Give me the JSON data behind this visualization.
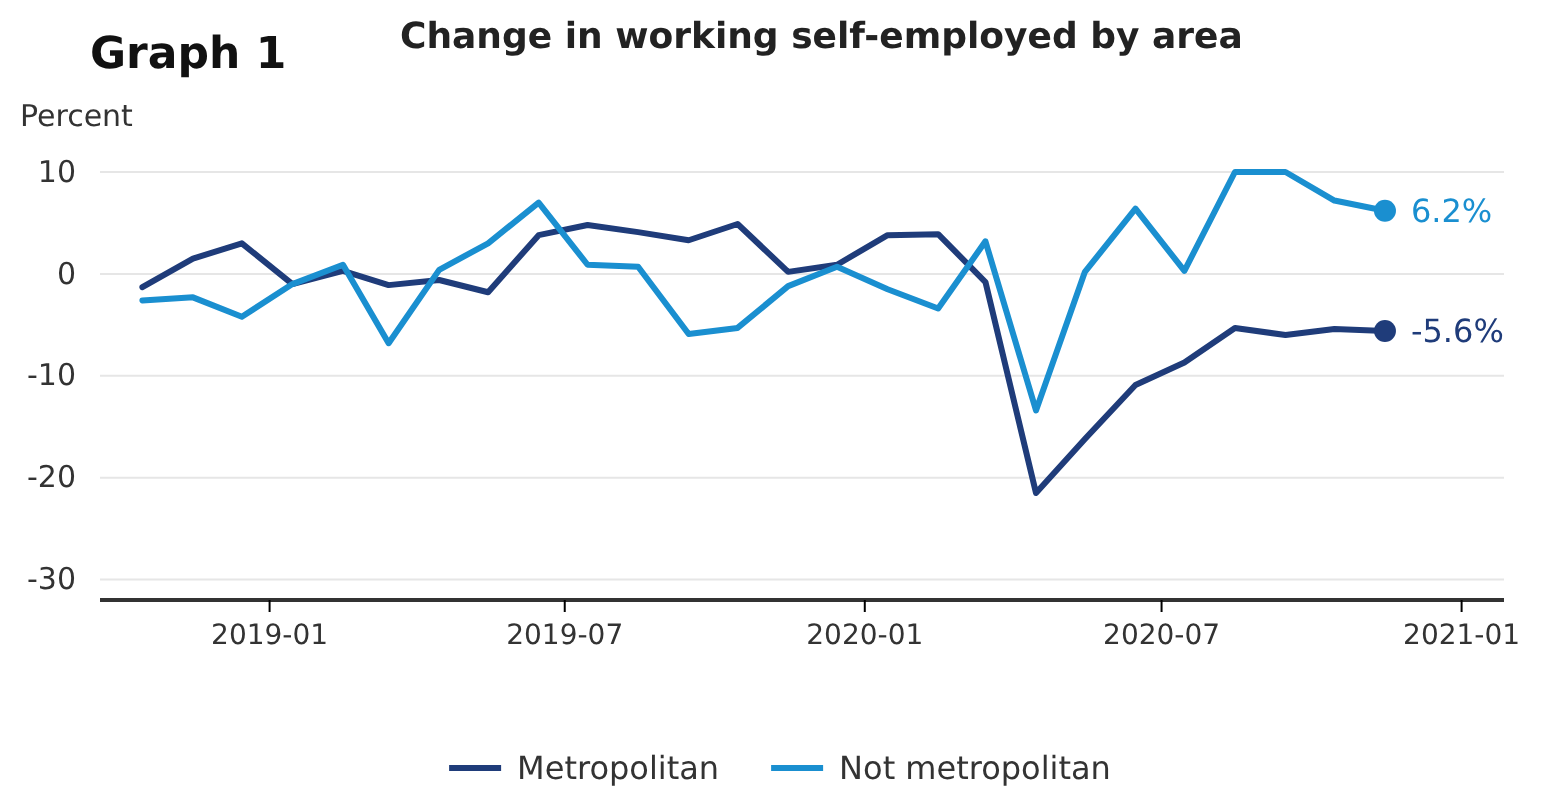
{
  "chart_data": {
    "type": "line",
    "title": "Change in working self-employed by area",
    "ylabel": "Percent",
    "annotations": [
      "Graph 1"
    ],
    "x": [
      "2018-10-15",
      "2018-11-15",
      "2018-12-15",
      "2019-01-15",
      "2019-02-15",
      "2019-03-15",
      "2019-04-15",
      "2019-05-15",
      "2019-06-15",
      "2019-07-15",
      "2019-08-15",
      "2019-09-15",
      "2019-10-15",
      "2019-11-15",
      "2019-12-15",
      "2020-01-15",
      "2020-02-15",
      "2020-03-15",
      "2020-04-15",
      "2020-05-15",
      "2020-06-15",
      "2020-07-15",
      "2020-08-15",
      "2020-09-15",
      "2020-10-15",
      "2020-11-15"
    ],
    "series": [
      {
        "name": "Metropolitan",
        "color": "#1f3c7a",
        "values": [
          -1.3,
          1.5,
          3,
          -1,
          0.3,
          -1.1,
          -0.6,
          -1.8,
          3.8,
          4.8,
          4.1,
          3.3,
          4.9,
          0.2,
          0.9,
          3.8,
          3.9,
          -0.8,
          -21.5,
          -16.2,
          -10.9,
          -8.7,
          -5.3,
          -6,
          -5.4,
          -5.6
        ],
        "value_labels": [
          null,
          null,
          null,
          null,
          null,
          null,
          null,
          null,
          null,
          null,
          null,
          null,
          null,
          null,
          null,
          null,
          null,
          null,
          null,
          null,
          null,
          null,
          null,
          null,
          null,
          "-5.6%"
        ]
      },
      {
        "name": "Not metropolitan",
        "color": "#1a8fd0",
        "values": [
          -2.6,
          -2.3,
          -4.2,
          -1,
          0.9,
          -6.8,
          0.4,
          3,
          7,
          0.9,
          0.7,
          -5.9,
          -5.3,
          -1.2,
          0.7,
          -1.5,
          -3.4,
          3.2,
          -13.4,
          0.2,
          6.4,
          0.3,
          10,
          10,
          7.2,
          6.2
        ],
        "value_labels": [
          null,
          null,
          null,
          null,
          null,
          null,
          null,
          null,
          null,
          null,
          null,
          null,
          null,
          null,
          null,
          null,
          null,
          null,
          null,
          null,
          null,
          null,
          null,
          null,
          null,
          "6.2%"
        ]
      }
    ],
    "xlim": [
      "2018-09-19",
      "2021-01-27"
    ],
    "xticks": [
      {
        "value": "2019-01-01",
        "label": "2019-01"
      },
      {
        "value": "2019-07-01",
        "label": "2019-07"
      },
      {
        "value": "2020-01-01",
        "label": "2020-01"
      },
      {
        "value": "2020-07-01",
        "label": "2020-07"
      },
      {
        "value": "2021-01-01",
        "label": "2021-01"
      }
    ],
    "ylim": [
      -32,
      10
    ],
    "yticks": [
      -30,
      -20,
      -10,
      0,
      10
    ],
    "grid": "y",
    "legend": "bottom",
    "line_style": "solid"
  }
}
